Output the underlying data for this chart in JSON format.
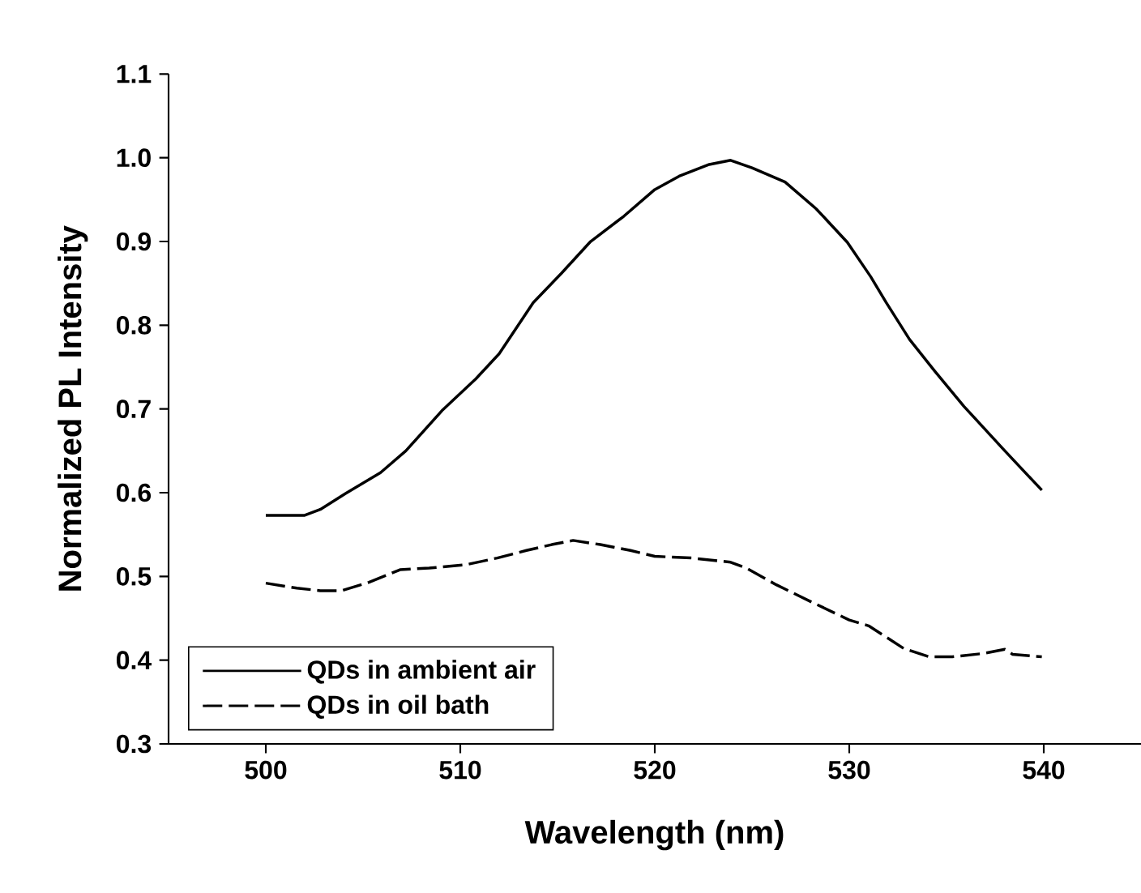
{
  "chart_data": {
    "type": "line",
    "xlabel": "Wavelength (nm)",
    "ylabel": "Normalized PL Intensity",
    "xlim": [
      495,
      545
    ],
    "xticks": [
      500,
      510,
      520,
      530,
      540
    ],
    "ylim": [
      0.3,
      1.1
    ],
    "yticks": [
      0.3,
      0.4,
      0.5,
      0.6,
      0.7,
      0.8,
      0.9,
      {
        "value": 1.0,
        "label": "1.0"
      },
      1.1
    ],
    "legend": "bottom left",
    "grid": false,
    "marker": "none",
    "series": [
      {
        "name": "QDs in ambient air",
        "color": "#000000",
        "line_style": "solid",
        "x": [
          500,
          502,
          502.8,
          504.1,
          505.9,
          507.2,
          509.1,
          510.8,
          512.0,
          513.75,
          515.2,
          516.7,
          518.4,
          520.0,
          521.25,
          522.8,
          523.9,
          525,
          526.7,
          528.3,
          529.9,
          531.1,
          531.9,
          533.1,
          534.4,
          535.9,
          538.0,
          539.9
        ],
        "values": [
          0.573,
          0.573,
          0.58,
          0.599,
          0.624,
          0.65,
          0.699,
          0.736,
          0.766,
          0.827,
          0.862,
          0.9,
          0.93,
          0.962,
          0.978,
          0.992,
          0.997,
          0.988,
          0.971,
          0.939,
          0.899,
          0.858,
          0.827,
          0.783,
          0.745,
          0.703,
          0.65,
          0.603
        ]
      },
      {
        "name": "QDs in oil bath",
        "color": "#000000",
        "line_style": "dashed",
        "x": [
          500,
          501.6,
          502.8,
          503.9,
          505.3,
          506.9,
          508.4,
          510.3,
          511.9,
          513.4,
          514.7,
          515.8,
          517.2,
          518.75,
          520,
          521.9,
          523.9,
          524.7,
          526.25,
          528.1,
          530,
          531,
          532.8,
          534.1,
          535.3,
          536.9,
          538.0,
          538.4,
          539.9
        ],
        "values": [
          0.492,
          0.486,
          0.483,
          0.483,
          0.493,
          0.508,
          0.51,
          0.514,
          0.522,
          0.531,
          0.538,
          0.543,
          0.538,
          0.531,
          0.524,
          0.522,
          0.517,
          0.51,
          0.49,
          0.469,
          0.448,
          0.441,
          0.414,
          0.404,
          0.404,
          0.408,
          0.413,
          0.407,
          0.404
        ]
      }
    ]
  }
}
